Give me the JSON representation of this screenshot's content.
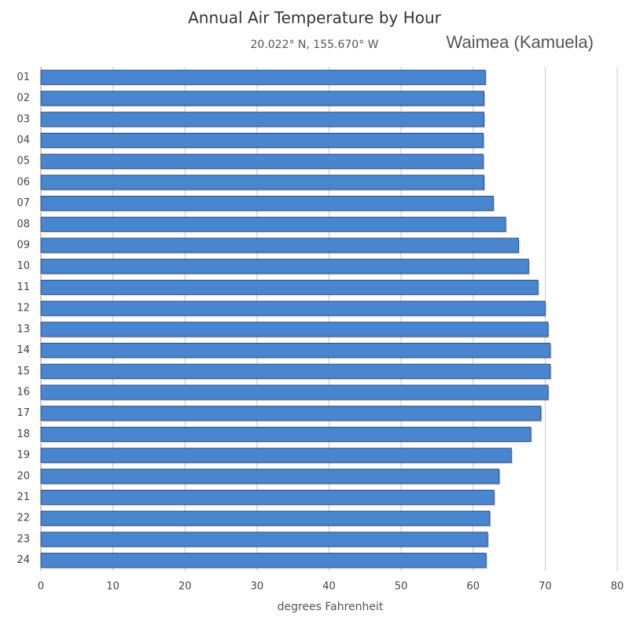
{
  "chart_data": {
    "type": "bar",
    "orientation": "horizontal",
    "title": "Annual Air Temperature by Hour",
    "subtitle": "20.022° N, 155.670° W",
    "location": "Waimea (Kamuela)",
    "x_label": "degrees Fahrenheit",
    "categories": [
      "01",
      "02",
      "03",
      "04",
      "05",
      "06",
      "07",
      "08",
      "09",
      "10",
      "11",
      "12",
      "13",
      "14",
      "15",
      "16",
      "17",
      "18",
      "19",
      "20",
      "21",
      "22",
      "23",
      "24"
    ],
    "values": [
      61.7,
      61.5,
      61.5,
      61.4,
      61.4,
      61.5,
      62.8,
      64.5,
      66.3,
      67.7,
      69.0,
      70.0,
      70.4,
      70.7,
      70.7,
      70.4,
      69.4,
      68.0,
      65.3,
      63.6,
      62.9,
      62.3,
      62.0,
      61.8
    ],
    "color": "#4a86d0",
    "xlim": [
      0,
      80
    ],
    "xticks": [
      0,
      10,
      20,
      30,
      40,
      50,
      60,
      70,
      80
    ],
    "grid": true
  }
}
